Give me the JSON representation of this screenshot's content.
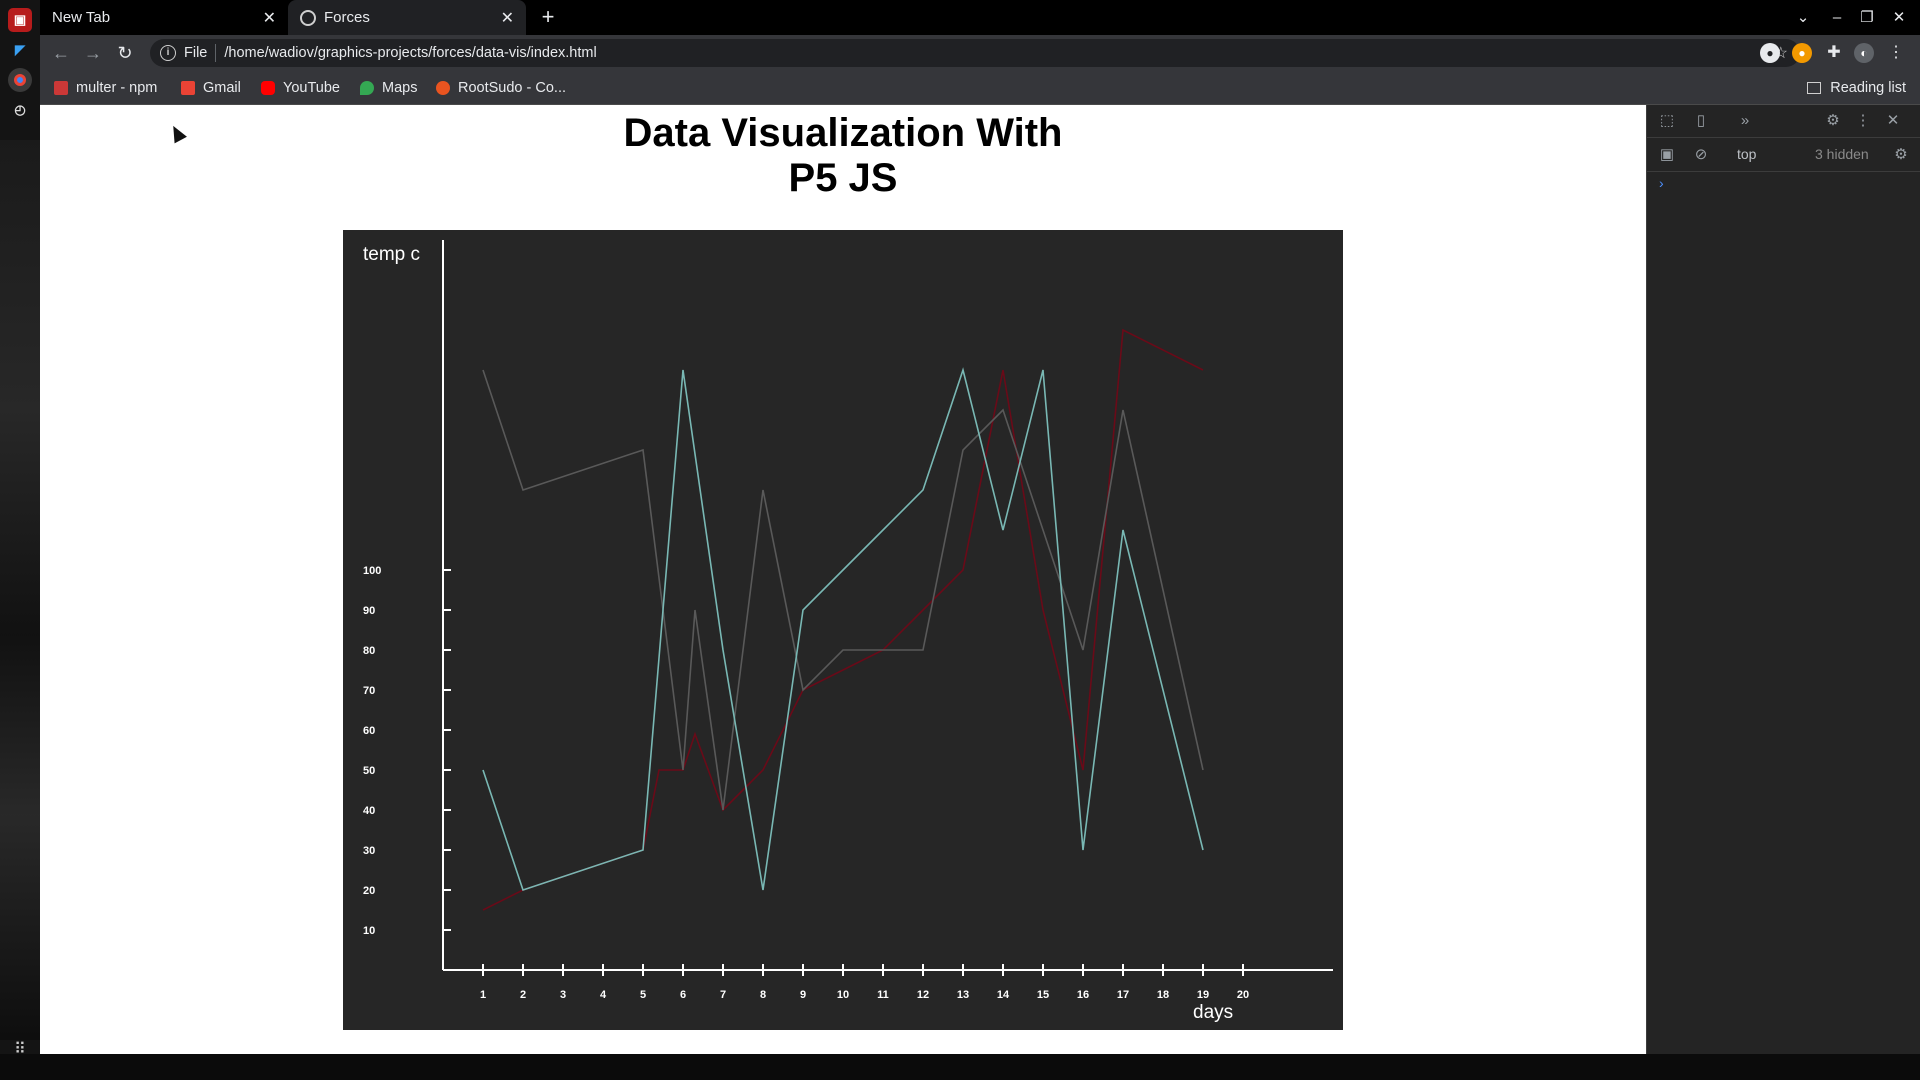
{
  "tabs": [
    {
      "label": "New Tab"
    },
    {
      "label": "Forces"
    }
  ],
  "address": {
    "scheme_label": "File",
    "url": "/home/wadiov/graphics-projects/forces/data-vis/index.html"
  },
  "bookmarks": [
    {
      "label": "multer - npm",
      "color": "#cb3837"
    },
    {
      "label": "Gmail",
      "color": "#ea4335"
    },
    {
      "label": "YouTube",
      "color": "#ff0000"
    },
    {
      "label": "Maps",
      "color": "#34a853"
    },
    {
      "label": "RootSudo - Co...",
      "color": "#e95420"
    }
  ],
  "reading_list": "Reading list",
  "page": {
    "title_line1": "Data Visualization With",
    "title_line2": "P5 JS"
  },
  "devtools": {
    "context": "top",
    "hidden": "3 hidden"
  },
  "chart_data": {
    "type": "line",
    "ylabel": "temp c",
    "xlabel": "days",
    "x_ticks": [
      1,
      2,
      3,
      4,
      5,
      6,
      7,
      8,
      9,
      10,
      11,
      12,
      13,
      14,
      15,
      16,
      17,
      18,
      19,
      20
    ],
    "y_ticks": [
      10,
      20,
      30,
      40,
      50,
      60,
      70,
      80,
      90,
      100
    ],
    "background": "#262626",
    "series": [
      {
        "color": "#6a0a18",
        "x": [
          1,
          2,
          5,
          5.4,
          6,
          6.3,
          7,
          8,
          9,
          10,
          11,
          12,
          13,
          14,
          15,
          16,
          17,
          19
        ],
        "y": [
          15,
          20,
          30,
          50,
          50,
          59,
          40,
          50,
          70,
          75,
          80,
          90,
          100,
          150,
          90,
          50,
          160,
          150
        ]
      },
      {
        "color": "#595959",
        "x": [
          1,
          2,
          5,
          6,
          6.3,
          7,
          8,
          9,
          10,
          11,
          12,
          13,
          14,
          15,
          16,
          17,
          19
        ],
        "y": [
          150,
          120,
          130,
          50,
          90,
          40,
          120,
          70,
          80,
          80,
          80,
          130,
          140,
          110,
          80,
          140,
          50
        ]
      },
      {
        "color": "#79b8b4",
        "x": [
          1,
          2,
          5,
          6,
          7,
          8,
          9,
          10,
          11,
          12,
          13,
          14,
          15,
          16,
          17,
          19
        ],
        "y": [
          50,
          20,
          30,
          150,
          80,
          20,
          90,
          100,
          110,
          120,
          150,
          110,
          150,
          30,
          110,
          30
        ]
      }
    ]
  },
  "colors": {
    "page_bg": "#ffffff",
    "chrome_bg": "#35363a",
    "axis": "#ffffff"
  }
}
